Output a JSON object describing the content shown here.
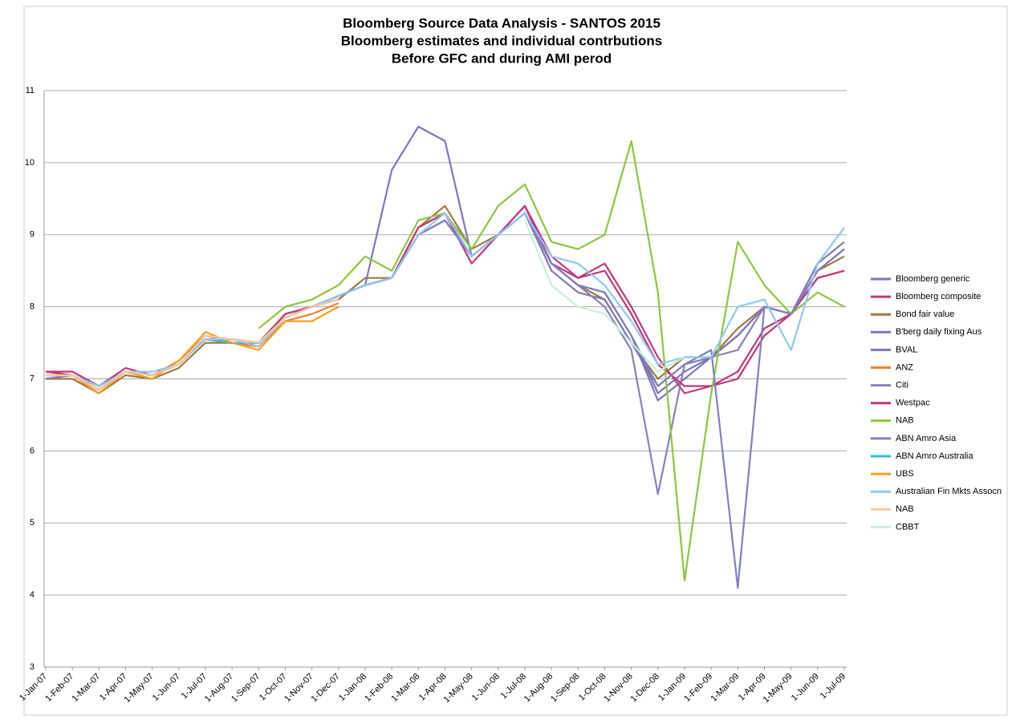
{
  "chart_data": {
    "type": "line",
    "title_lines": [
      "Bloomberg Source Data Analysis - SANTOS 2015",
      "Bloomberg estimates and individual contrbutions",
      "Before GFC and during AMI perod"
    ],
    "categories": [
      "1-Jan-07",
      "1-Feb-07",
      "1-Mar-07",
      "1-Apr-07",
      "1-May-07",
      "1-Jun-07",
      "1-Jul-07",
      "1-Aug-07",
      "1-Sep-07",
      "1-Oct-07",
      "1-Nov-07",
      "1-Dec-07",
      "1-Jan-08",
      "1-Feb-08",
      "1-Mar-08",
      "1-Apr-08",
      "1-May-08",
      "1-Jun-08",
      "1-Jul-08",
      "1-Aug-08",
      "1-Sep-08",
      "1-Oct-08",
      "1-Nov-08",
      "1-Dec-08",
      "1-Jan-09",
      "1-Feb-09",
      "1-Mar-09",
      "1-Apr-09",
      "1-May-09",
      "1-Jun-09",
      "1-Jul-09"
    ],
    "ylim": [
      3,
      11
    ],
    "yticks": [
      3,
      4,
      5,
      6,
      7,
      8,
      9,
      10,
      11
    ],
    "grid": true,
    "legend": "right",
    "series": [
      {
        "name": "Bloomberg generic",
        "color": "#7f77b8",
        "values": [
          7.05,
          7.05,
          6.85,
          7.1,
          7.05,
          7.2,
          7.55,
          7.55,
          7.5,
          7.85,
          8.0,
          8.15,
          8.3,
          8.4,
          9.0,
          9.2,
          8.7,
          9.0,
          9.3,
          8.6,
          8.3,
          8.2,
          7.6,
          6.7,
          7.0,
          7.3,
          7.6,
          8.0,
          7.9,
          8.5,
          8.8
        ]
      },
      {
        "name": "Bloomberg composite",
        "color": "#c0397a",
        "values": [
          7.1,
          7.1,
          6.9,
          7.15,
          7.05,
          7.2,
          7.55,
          7.5,
          7.5,
          7.9,
          8.0,
          8.15,
          8.3,
          8.4,
          9.1,
          9.3,
          8.6,
          9.0,
          9.4,
          8.7,
          8.4,
          8.6,
          8.0,
          7.3,
          6.8,
          6.9,
          7.0,
          7.6,
          7.9,
          8.4,
          8.5
        ]
      },
      {
        "name": "Bond fair value",
        "color": "#a07840",
        "values": [
          7.0,
          7.0,
          6.8,
          7.05,
          7.0,
          7.15,
          7.5,
          7.5,
          7.45,
          7.85,
          8.0,
          8.1,
          8.4,
          8.4,
          9.1,
          9.4,
          8.8,
          9.0,
          9.3,
          8.6,
          8.3,
          8.1,
          7.5,
          7.0,
          7.3,
          7.3,
          7.7,
          8.0,
          7.9,
          8.5,
          8.7
        ]
      },
      {
        "name": "B'berg daily fixing Aus",
        "color": "#7a78c0",
        "values": [
          7.05,
          7.05,
          6.85,
          7.1,
          7.05,
          7.2,
          7.55,
          7.55,
          7.5,
          7.85,
          8.0,
          8.15,
          8.3,
          9.9,
          10.5,
          10.3,
          8.7,
          9.0,
          9.3,
          8.6,
          8.3,
          8.2,
          7.6,
          6.8,
          7.1,
          7.3,
          7.6,
          8.0,
          7.9,
          8.5,
          8.8
        ]
      },
      {
        "name": "BVAL",
        "color": "#8078b0",
        "values": [
          7.0,
          7.05,
          6.9,
          7.1,
          7.05,
          7.2,
          7.55,
          7.55,
          7.5,
          7.85,
          8.0,
          8.15,
          8.3,
          8.4,
          9.0,
          9.2,
          8.7,
          9.0,
          9.3,
          8.5,
          8.2,
          8.1,
          7.5,
          6.9,
          7.2,
          7.3,
          7.6,
          8.0,
          7.9,
          8.6,
          8.9
        ]
      },
      {
        "name": "ANZ",
        "color": "#f4812c",
        "values": [
          7.05,
          7.05,
          6.85,
          7.1,
          7.05,
          7.25,
          7.6,
          7.5,
          7.45,
          7.8,
          7.9,
          8.05,
          null,
          null,
          null,
          null,
          null,
          null,
          null,
          null,
          null,
          null,
          null,
          null,
          null,
          null,
          null,
          null,
          null,
          null,
          null
        ]
      },
      {
        "name": "Citi",
        "color": "#8a80b8",
        "values": [
          7.05,
          7.05,
          6.85,
          7.1,
          7.05,
          7.2,
          7.55,
          7.55,
          7.5,
          7.85,
          8.0,
          8.15,
          8.3,
          8.4,
          9.0,
          9.2,
          8.7,
          9.0,
          9.3,
          8.6,
          8.3,
          8.0,
          7.4,
          5.4,
          7.2,
          7.3,
          7.4,
          8.0,
          7.9,
          8.5,
          8.8
        ]
      },
      {
        "name": "Westpac",
        "color": "#c0397a",
        "values": [
          7.1,
          7.05,
          6.9,
          7.1,
          7.05,
          7.2,
          7.55,
          7.5,
          7.5,
          7.9,
          8.0,
          8.15,
          8.3,
          8.4,
          9.1,
          9.3,
          8.7,
          9.0,
          9.4,
          8.6,
          8.4,
          8.5,
          7.9,
          7.2,
          6.9,
          6.9,
          7.1,
          7.7,
          7.9,
          8.4,
          8.5
        ]
      },
      {
        "name": "NAB",
        "color": "#8dc63f",
        "values": [
          null,
          null,
          null,
          null,
          null,
          null,
          null,
          null,
          7.7,
          8.0,
          8.1,
          8.3,
          8.7,
          8.5,
          9.2,
          9.3,
          8.8,
          9.4,
          9.7,
          8.9,
          8.8,
          9.0,
          10.3,
          8.2,
          4.2,
          6.8,
          8.9,
          8.3,
          7.9,
          8.2,
          8.0
        ]
      },
      {
        "name": "ABN Amro Asia",
        "color": "#8080c0",
        "values": [
          7.05,
          7.05,
          6.85,
          7.1,
          7.05,
          7.2,
          7.55,
          7.55,
          7.5,
          7.85,
          8.0,
          8.15,
          8.3,
          8.4,
          9.0,
          9.2,
          8.7,
          9.0,
          9.3,
          8.6,
          8.3,
          8.2,
          7.6,
          6.9,
          7.2,
          7.4,
          4.1,
          8.0,
          7.9,
          8.5,
          8.8
        ]
      },
      {
        "name": "ABN Amro Australia",
        "color": "#30c0d0",
        "values": [
          7.05,
          7.05,
          6.85,
          7.1,
          7.05,
          7.2,
          7.55,
          7.5,
          7.5,
          7.85,
          8.0,
          8.1,
          null,
          null,
          null,
          null,
          null,
          null,
          null,
          null,
          null,
          null,
          null,
          null,
          null,
          null,
          null,
          null,
          null,
          null,
          null
        ]
      },
      {
        "name": "UBS",
        "color": "#f8a020",
        "values": [
          7.05,
          7.05,
          6.8,
          7.1,
          7.0,
          7.25,
          7.65,
          7.5,
          7.4,
          7.8,
          7.8,
          8.0,
          null,
          null,
          null,
          null,
          null,
          null,
          null,
          null,
          null,
          null,
          null,
          null,
          null,
          null,
          null,
          null,
          null,
          null,
          null
        ]
      },
      {
        "name": "Australian Fin Mkts Assocn",
        "color": "#90c8f0",
        "values": [
          7.05,
          7.05,
          6.9,
          7.1,
          7.1,
          7.2,
          7.55,
          7.55,
          7.45,
          7.85,
          8.0,
          8.15,
          8.3,
          8.4,
          9.0,
          9.3,
          8.7,
          9.0,
          9.3,
          8.7,
          8.6,
          8.3,
          7.8,
          7.2,
          7.3,
          7.3,
          8.0,
          8.1,
          7.4,
          8.6,
          9.1
        ]
      },
      {
        "name": "NAB",
        "color": "#f8c8a0",
        "values": [
          7.05,
          7.05,
          6.85,
          7.1,
          7.05,
          7.2,
          7.6,
          7.55,
          7.5,
          7.85,
          8.0,
          8.1,
          null,
          null,
          null,
          null,
          null,
          null,
          null,
          null,
          null,
          null,
          null,
          null,
          null,
          null,
          null,
          null,
          null,
          null,
          null
        ]
      },
      {
        "name": "CBBT",
        "color": "#c8f0d8",
        "values": [
          null,
          null,
          null,
          null,
          null,
          null,
          null,
          null,
          null,
          null,
          null,
          null,
          null,
          null,
          null,
          null,
          null,
          null,
          9.2,
          8.3,
          8.0,
          7.9,
          7.5,
          7.1,
          7.3,
          null,
          null,
          null,
          null,
          null,
          null
        ]
      }
    ]
  }
}
